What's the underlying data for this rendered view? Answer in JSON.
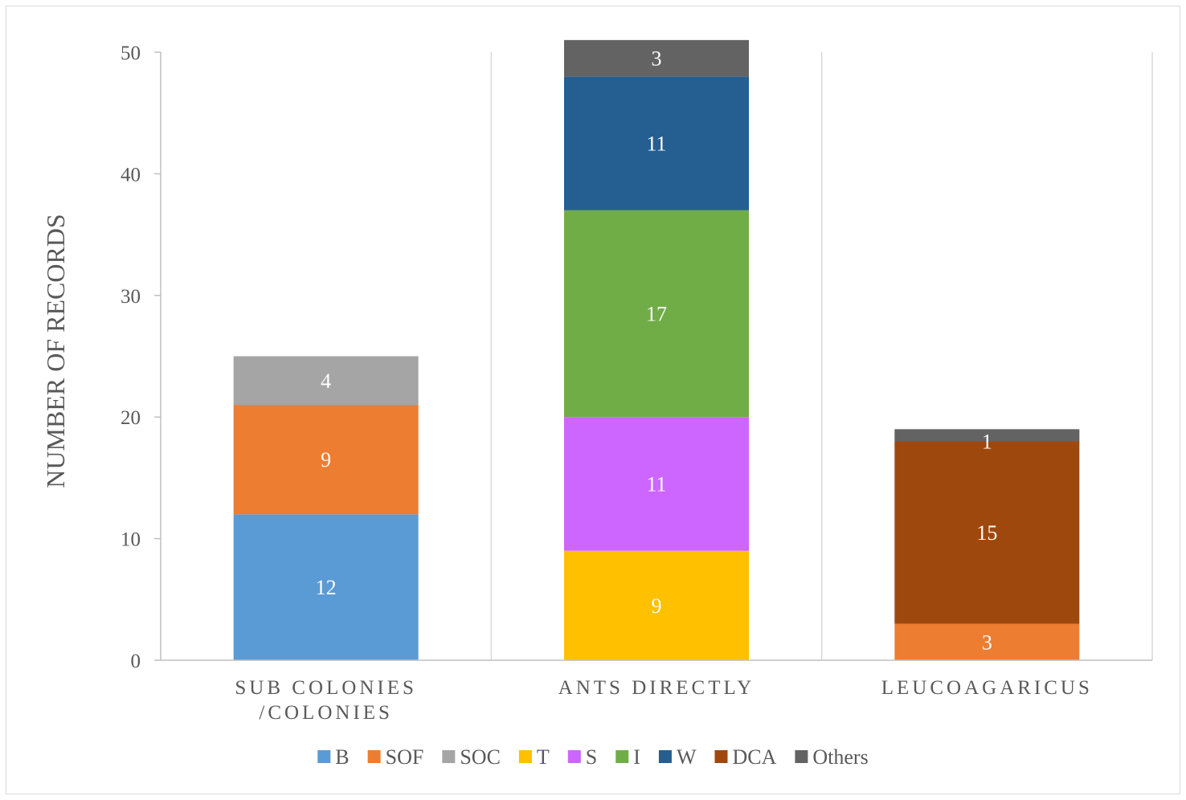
{
  "chart_data": {
    "type": "bar",
    "stacked": true,
    "categories": [
      [
        "SUB COLONIES",
        "/COLONIES"
      ],
      [
        "ANTS DIRECTLY"
      ],
      [
        "LEUCOAGARICUS"
      ]
    ],
    "ylabel": "NUMBER OF RECORDS",
    "xlabel": "",
    "ylim": [
      0,
      50
    ],
    "yticks": [
      0,
      10,
      20,
      30,
      40,
      50
    ],
    "grid": "vertical separators between categories",
    "legend_position": "bottom",
    "series": [
      {
        "name": "B",
        "color": "#5b9bd5",
        "values": [
          12,
          0,
          0
        ]
      },
      {
        "name": "SOF",
        "color": "#ed7d31",
        "values": [
          9,
          0,
          3
        ]
      },
      {
        "name": "SOC",
        "color": "#a5a5a5",
        "values": [
          4,
          0,
          0
        ]
      },
      {
        "name": "T",
        "color": "#ffc000",
        "values": [
          0,
          9,
          0
        ]
      },
      {
        "name": "S",
        "color": "#cc66ff",
        "values": [
          0,
          11,
          0
        ]
      },
      {
        "name": "I",
        "color": "#70ad47",
        "values": [
          0,
          17,
          0
        ]
      },
      {
        "name": "W",
        "color": "#255e91",
        "values": [
          0,
          11,
          0
        ]
      },
      {
        "name": "DCA",
        "color": "#9e480e",
        "values": [
          0,
          0,
          15
        ]
      },
      {
        "name": "Others",
        "color": "#636363",
        "values": [
          0,
          3,
          1
        ]
      }
    ]
  }
}
